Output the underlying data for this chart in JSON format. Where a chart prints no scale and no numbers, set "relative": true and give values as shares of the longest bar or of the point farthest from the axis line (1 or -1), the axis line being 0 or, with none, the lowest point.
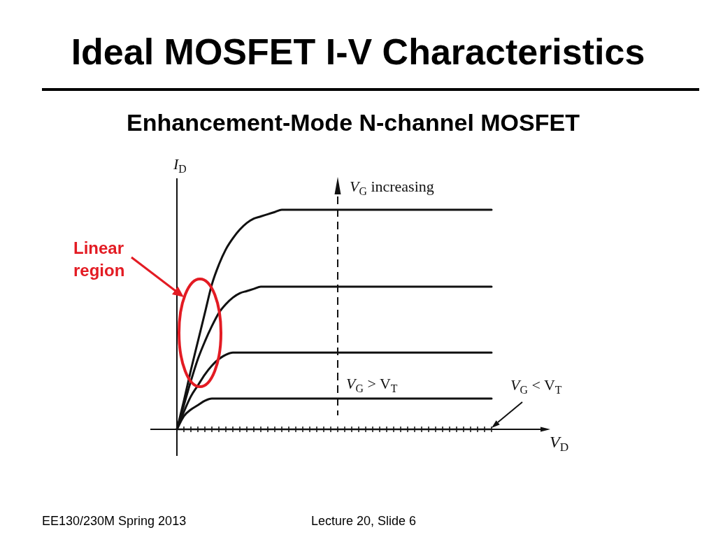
{
  "chart_data": {
    "type": "line",
    "title": "Ideal MOSFET I-V Characteristics",
    "subtitle": "Enhancement-Mode N-channel MOSFET",
    "xlabel": "V$_{D}$",
    "ylabel": "I$_{D}$",
    "relative": true,
    "marker": "none",
    "grid": false,
    "legend": false,
    "tick_labels": false,
    "categories": [
      null,
      null,
      null,
      null,
      null,
      null,
      null,
      null,
      null,
      null,
      null,
      null,
      null,
      null,
      null,
      null,
      null,
      null,
      null,
      null,
      null,
      null,
      null,
      null,
      null,
      null,
      null,
      null,
      null,
      null,
      null,
      null,
      null,
      null,
      null,
      null,
      null,
      null,
      null,
      null,
      null,
      null,
      null,
      null,
      null,
      null
    ],
    "series": [
      {
        "color": "#111111",
        "values": [
          0,
          0.13,
          0.27,
          0.4,
          0.53,
          0.66,
          0.75,
          0.82,
          0.87,
          0.91,
          0.94,
          0.96,
          0.97,
          0.98,
          0.99,
          1,
          1,
          1,
          1,
          1,
          1,
          1,
          1,
          1,
          1,
          1,
          1,
          1,
          1,
          1,
          1,
          1,
          1,
          1,
          1,
          1,
          1,
          1,
          1,
          1,
          1,
          1,
          1,
          1,
          1,
          1
        ]
      },
      {
        "color": "#111111",
        "values": [
          0,
          0.11,
          0.22,
          0.32,
          0.4,
          0.47,
          0.53,
          0.57,
          0.6,
          0.62,
          0.63,
          0.64,
          0.65,
          0.65,
          0.65,
          0.65,
          0.65,
          0.65,
          0.65,
          0.65,
          0.65,
          0.65,
          0.65,
          0.65,
          0.65,
          0.65,
          0.65,
          0.65,
          0.65,
          0.65,
          0.65,
          0.65,
          0.65,
          0.65,
          0.65,
          0.65,
          0.65,
          0.65,
          0.65,
          0.65,
          0.65,
          0.65,
          0.65,
          0.65,
          0.65,
          0.65
        ]
      },
      {
        "color": "#111111",
        "values": [
          0,
          0.08,
          0.15,
          0.2,
          0.25,
          0.29,
          0.32,
          0.34,
          0.35,
          0.35,
          0.35,
          0.35,
          0.35,
          0.35,
          0.35,
          0.35,
          0.35,
          0.35,
          0.35,
          0.35,
          0.35,
          0.35,
          0.35,
          0.35,
          0.35,
          0.35,
          0.35,
          0.35,
          0.35,
          0.35,
          0.35,
          0.35,
          0.35,
          0.35,
          0.35,
          0.35,
          0.35,
          0.35,
          0.35,
          0.35,
          0.35,
          0.35,
          0.35,
          0.35,
          0.35,
          0.35
        ]
      },
      {
        "color": "#111111",
        "values": [
          0,
          0.06,
          0.09,
          0.11,
          0.13,
          0.14,
          0.14,
          0.14,
          0.14,
          0.14,
          0.14,
          0.14,
          0.14,
          0.14,
          0.14,
          0.14,
          0.14,
          0.14,
          0.14,
          0.14,
          0.14,
          0.14,
          0.14,
          0.14,
          0.14,
          0.14,
          0.14,
          0.14,
          0.14,
          0.14,
          0.14,
          0.14,
          0.14,
          0.14,
          0.14,
          0.14,
          0.14,
          0.14,
          0.14,
          0.14,
          0.14,
          0.14,
          0.14,
          0.14,
          0.14,
          0.14
        ]
      },
      {
        "name": "V$_{G}$ < V$_{T}$",
        "color": "#111111",
        "marker": "cross",
        "values": [
          0,
          0,
          0,
          0,
          0,
          0,
          0,
          0,
          0,
          0,
          0,
          0,
          0,
          0,
          0,
          0,
          0,
          0,
          0,
          0,
          0,
          0,
          0,
          0,
          0,
          0,
          0,
          0,
          0,
          0,
          0,
          0,
          0,
          0,
          0,
          0,
          0,
          0,
          0,
          0,
          0,
          0,
          0,
          0,
          0,
          0
        ]
      }
    ],
    "annotations": [
      "V$_{G}$ increasing",
      "V$_{G}$ > V$_{T}$",
      "Linear region",
      "EE130/230M Spring 2013",
      "Lecture 20, Slide 6"
    ]
  }
}
